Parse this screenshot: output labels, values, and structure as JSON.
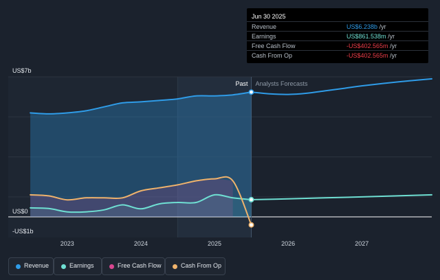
{
  "colors": {
    "revenue": "#2f9ce8",
    "earnings": "#6fe0d3",
    "free_cash_flow": "#d8468f",
    "cash_from_op": "#f0b36c",
    "negative": "#ee3d48",
    "background": "#1b222d"
  },
  "tooltip": {
    "date": "Jun 30 2025",
    "rows": [
      {
        "label": "Revenue",
        "value": "US$6.238b",
        "unit": "/yr",
        "color": "#2f9ce8"
      },
      {
        "label": "Earnings",
        "value": "US$861.538m",
        "unit": "/yr",
        "color": "#6fe0d3"
      },
      {
        "label": "Free Cash Flow",
        "value": "-US$402.565m",
        "unit": "/yr",
        "color": "#ee3d48"
      },
      {
        "label": "Cash From Op",
        "value": "-US$402.565m",
        "unit": "/yr",
        "color": "#ee3d48"
      }
    ]
  },
  "legend": [
    {
      "label": "Revenue",
      "color": "#2f9ce8"
    },
    {
      "label": "Earnings",
      "color": "#6fe0d3"
    },
    {
      "label": "Free Cash Flow",
      "color": "#d8468f"
    },
    {
      "label": "Cash From Op",
      "color": "#f0b36c"
    }
  ],
  "chart_data": {
    "type": "line",
    "x_unit": "year",
    "y_unit": "US$ billions",
    "y_tick_labels": [
      "US$7b",
      "US$0",
      "-US$1b"
    ],
    "y_ticks": [
      7,
      0,
      -1
    ],
    "ylim": [
      -1,
      7
    ],
    "xlim": [
      2022.2,
      2027.95
    ],
    "x_tick_labels": [
      "2023",
      "2024",
      "2025",
      "2026",
      "2027"
    ],
    "x_ticks": [
      2023,
      2024,
      2025,
      2026,
      2027
    ],
    "past_label": "Past",
    "forecast_label": "Analysts Forecasts",
    "divider_x": 2025.5,
    "highlight_start_x": 2024.5,
    "grid": true,
    "legend_position": "bottom",
    "series": [
      {
        "name": "Revenue",
        "key": "revenue",
        "area": true,
        "points": [
          [
            2022.5,
            5.2
          ],
          [
            2022.75,
            5.15
          ],
          [
            2023.0,
            5.2
          ],
          [
            2023.25,
            5.3
          ],
          [
            2023.5,
            5.5
          ],
          [
            2023.75,
            5.7
          ],
          [
            2024.0,
            5.75
          ],
          [
            2024.25,
            5.82
          ],
          [
            2024.5,
            5.9
          ],
          [
            2024.75,
            6.05
          ],
          [
            2025.0,
            6.05
          ],
          [
            2025.25,
            6.1
          ],
          [
            2025.5,
            6.238
          ]
        ],
        "forecast": [
          [
            2025.5,
            6.238
          ],
          [
            2025.75,
            6.15
          ],
          [
            2026.0,
            6.12
          ],
          [
            2026.25,
            6.18
          ],
          [
            2026.5,
            6.3
          ],
          [
            2026.75,
            6.42
          ],
          [
            2027.0,
            6.55
          ],
          [
            2027.5,
            6.75
          ],
          [
            2027.95,
            6.9
          ]
        ]
      },
      {
        "name": "Earnings",
        "key": "earnings",
        "area": true,
        "points": [
          [
            2022.5,
            0.45
          ],
          [
            2022.75,
            0.42
          ],
          [
            2023.0,
            0.25
          ],
          [
            2023.25,
            0.25
          ],
          [
            2023.5,
            0.35
          ],
          [
            2023.75,
            0.6
          ],
          [
            2024.0,
            0.4
          ],
          [
            2024.25,
            0.65
          ],
          [
            2024.5,
            0.72
          ],
          [
            2024.75,
            0.72
          ],
          [
            2025.0,
            1.1
          ],
          [
            2025.25,
            0.95
          ],
          [
            2025.5,
            0.8615
          ]
        ],
        "forecast": [
          [
            2025.5,
            0.8615
          ],
          [
            2026.0,
            0.9
          ],
          [
            2026.5,
            0.95
          ],
          [
            2027.0,
            1.0
          ],
          [
            2027.95,
            1.1
          ]
        ]
      },
      {
        "name": "Free Cash Flow",
        "key": "free_cash_flow",
        "area": true,
        "points": [
          [
            2022.5,
            1.1
          ],
          [
            2022.75,
            1.05
          ],
          [
            2023.0,
            0.85
          ],
          [
            2023.25,
            0.95
          ],
          [
            2023.5,
            0.95
          ],
          [
            2023.75,
            0.95
          ],
          [
            2024.0,
            1.3
          ],
          [
            2024.25,
            1.45
          ],
          [
            2024.5,
            1.6
          ],
          [
            2024.75,
            1.8
          ],
          [
            2025.0,
            1.9
          ],
          [
            2025.25,
            1.8
          ],
          [
            2025.5,
            -0.4026
          ]
        ],
        "forecast": []
      },
      {
        "name": "Cash From Op",
        "key": "cash_from_op",
        "area": false,
        "points": [
          [
            2022.5,
            1.1
          ],
          [
            2022.75,
            1.05
          ],
          [
            2023.0,
            0.85
          ],
          [
            2023.25,
            0.95
          ],
          [
            2023.5,
            0.95
          ],
          [
            2023.75,
            0.95
          ],
          [
            2024.0,
            1.3
          ],
          [
            2024.25,
            1.45
          ],
          [
            2024.5,
            1.6
          ],
          [
            2024.75,
            1.8
          ],
          [
            2025.0,
            1.9
          ],
          [
            2025.25,
            1.8
          ],
          [
            2025.5,
            -0.4026
          ]
        ],
        "forecast": []
      }
    ]
  }
}
